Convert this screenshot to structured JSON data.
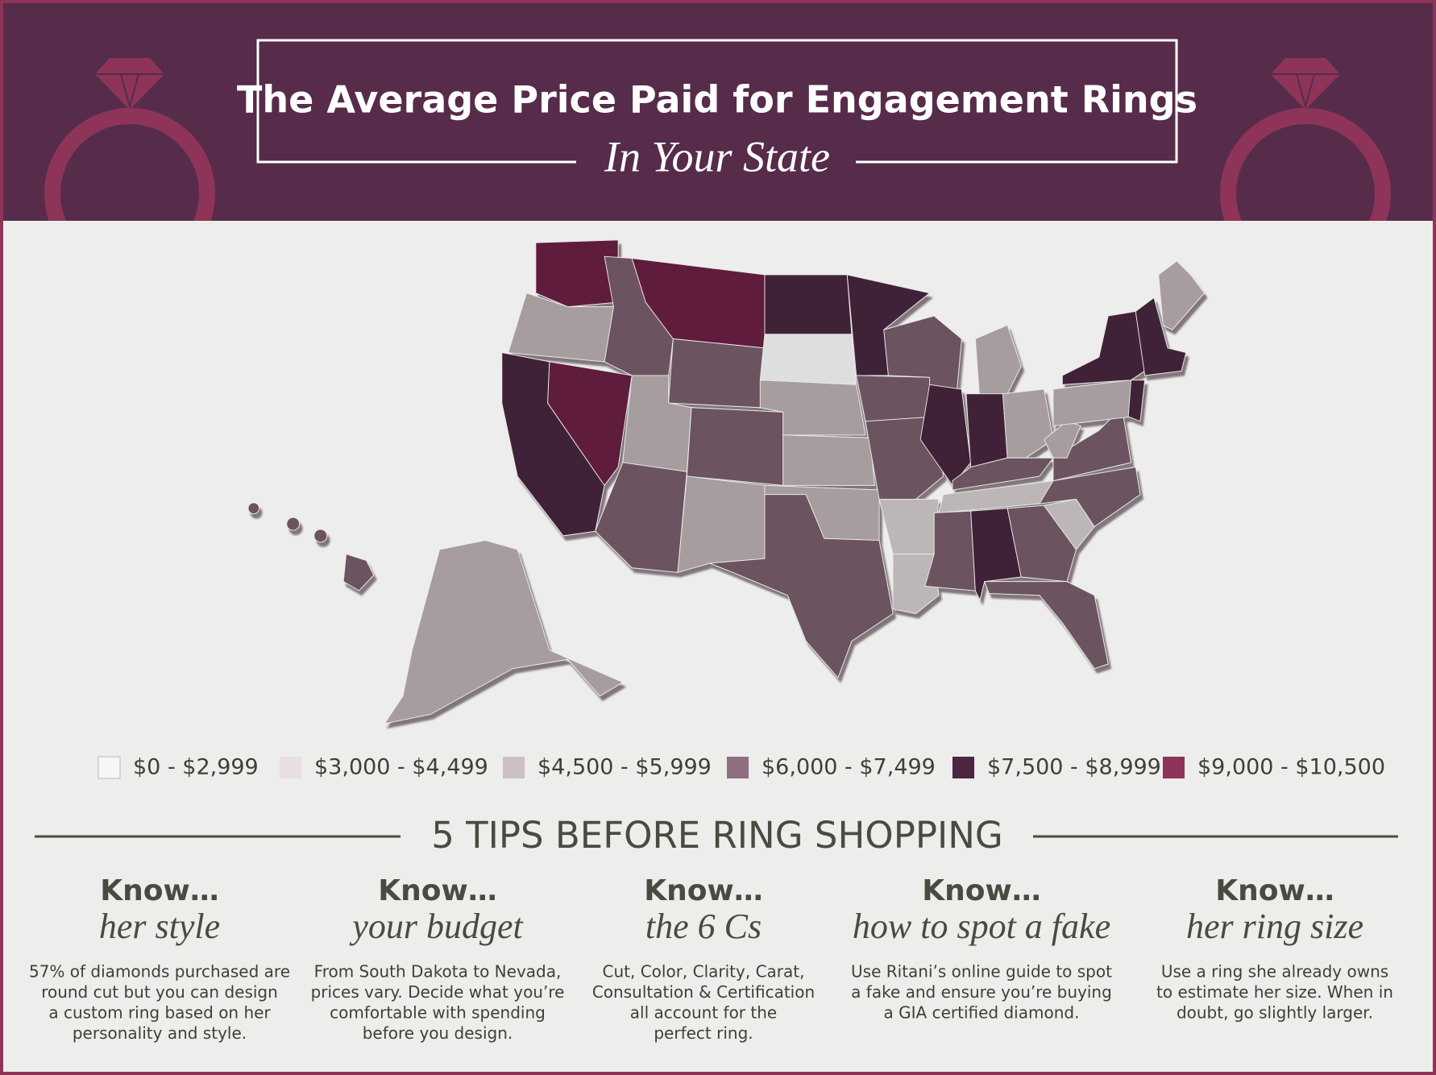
{
  "header": {
    "title": "The Average Price Paid for Engagement Rings",
    "subtitle": "In Your State"
  },
  "legend": {
    "items": [
      "$0 - $2,999",
      "$3,000 - $4,499",
      "$4,500 - $5,999",
      "$6,000 - $7,499",
      "$7,500 - $8,999",
      "$9,000 - $10,500"
    ]
  },
  "tips": {
    "heading": "5 TIPS BEFORE RING SHOPPING",
    "items": [
      {
        "kicker": "Know…",
        "topic": "her style",
        "lines": [
          "57% of diamonds purchased are",
          "round cut but you can design",
          "a custom ring based on her",
          "personality and style."
        ]
      },
      {
        "kicker": "Know…",
        "topic": "your budget",
        "lines": [
          "From South Dakota to Nevada,",
          "prices vary. Decide what you’re",
          "comfortable with spending",
          "before you design."
        ]
      },
      {
        "kicker": "Know…",
        "topic": "the 6 Cs",
        "lines": [
          "Cut, Color, Clarity, Carat,",
          "Consultation & Certification",
          "all account for the",
          "perfect ring."
        ]
      },
      {
        "kicker": "Know…",
        "topic": "how to spot a fake",
        "lines": [
          "Use Ritani’s online guide to spot",
          "a fake and ensure you’re buying",
          "a GIA certified diamond."
        ]
      },
      {
        "kicker": "Know…",
        "topic": "her ring size",
        "lines": [
          "Use a ring she already owns",
          "to estimate her size. When in",
          "doubt, go slightly larger."
        ]
      }
    ]
  }
}
